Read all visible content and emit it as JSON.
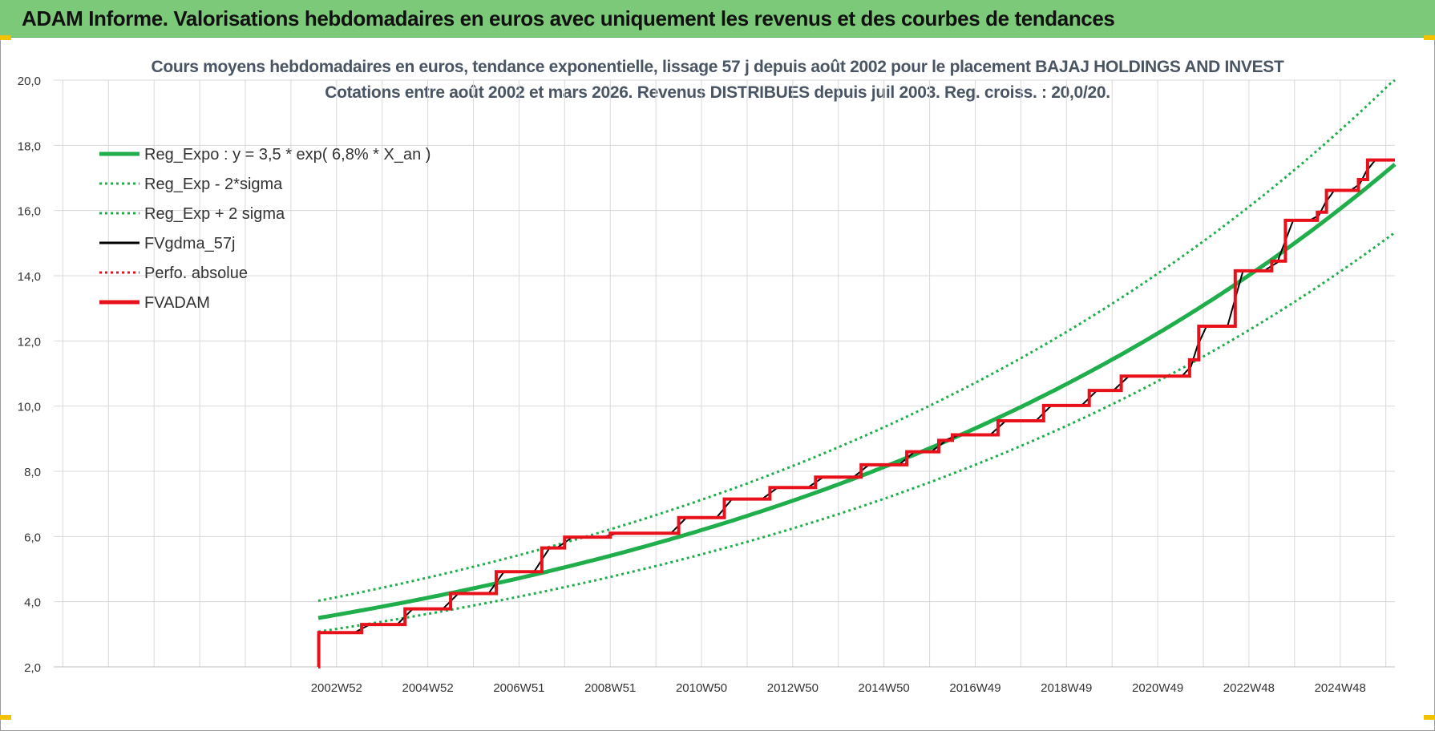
{
  "header": {
    "title": "ADAM Informe. Valorisations hebdomadaires en euros avec uniquement les revenus et des courbes de tendances"
  },
  "colors": {
    "banner": "#7dc97a",
    "reg_expo": "#1fae4b",
    "fvgdma": "#000000",
    "fvadam": "#e8101a",
    "perfo": "#e8101a",
    "grid": "#d9d9d9"
  },
  "chart_data": {
    "type": "line",
    "title": "Cours moyens hebdomadaires en euros, tendance exponentielle, lissage 57 j depuis août 2002 pour le placement BAJAJ HOLDINGS AND INVEST",
    "subtitle": "Cotations entre août 2002 et mars 2026. Revenus DISTRIBUES depuis juil 2003. Reg. croiss. : 20,0/20.",
    "ylim": [
      2.0,
      20.0
    ],
    "y_ticks": [
      "20,0",
      "18,0",
      "16,0",
      "14,0",
      "12,0",
      "10,0",
      "8,0",
      "6,0",
      "4,0",
      "2,0"
    ],
    "x_range": [
      1996.8,
      2026.2
    ],
    "x_ticks": [
      {
        "label": "2002W52",
        "year": 2003.0
      },
      {
        "label": "2004W52",
        "year": 2005.0
      },
      {
        "label": "2006W51",
        "year": 2007.0
      },
      {
        "label": "2008W51",
        "year": 2009.0
      },
      {
        "label": "2010W50",
        "year": 2011.0
      },
      {
        "label": "2012W50",
        "year": 2013.0
      },
      {
        "label": "2014W50",
        "year": 2015.0
      },
      {
        "label": "2016W49",
        "year": 2017.0
      },
      {
        "label": "2018W49",
        "year": 2019.0
      },
      {
        "label": "2020W49",
        "year": 2021.0
      },
      {
        "label": "2022W48",
        "year": 2023.0
      },
      {
        "label": "2024W48",
        "year": 2025.0
      }
    ],
    "grid": true,
    "legend_position": "top-left",
    "legend": [
      {
        "label": "Reg_Expo : y = 3,5 * exp( 6,8% *  X_an )",
        "style": "solid",
        "color": "#1fae4b"
      },
      {
        "label": "Reg_Exp - 2*sigma",
        "style": "dotted",
        "color": "#1fae4b"
      },
      {
        "label": "Reg_Exp + 2 sigma",
        "style": "dotted",
        "color": "#1fae4b"
      },
      {
        "label": "FVgdma_57j",
        "style": "solid",
        "color": "#000000"
      },
      {
        "label": "Perfo. absolue",
        "style": "dotted",
        "color": "#e8101a"
      },
      {
        "label": "FVADAM",
        "style": "solid",
        "color": "#e8101a"
      }
    ],
    "reg_expo": {
      "start_year": 2002.6,
      "end_year": 2026.2,
      "a": 3.5,
      "growth": 0.068,
      "lower_factor": 0.88,
      "upper_factor": 1.15
    },
    "fvadam_steps": [
      {
        "year": 2002.6,
        "value": 2.0
      },
      {
        "year": 2002.61,
        "value": 3.05
      },
      {
        "year": 2003.55,
        "value": 3.3
      },
      {
        "year": 2004.5,
        "value": 3.78
      },
      {
        "year": 2005.5,
        "value": 4.25
      },
      {
        "year": 2006.5,
        "value": 4.92
      },
      {
        "year": 2007.5,
        "value": 5.65
      },
      {
        "year": 2008.0,
        "value": 5.98
      },
      {
        "year": 2009.0,
        "value": 6.1
      },
      {
        "year": 2010.5,
        "value": 6.58
      },
      {
        "year": 2011.5,
        "value": 7.15
      },
      {
        "year": 2012.5,
        "value": 7.5
      },
      {
        "year": 2013.5,
        "value": 7.82
      },
      {
        "year": 2014.5,
        "value": 8.2
      },
      {
        "year": 2015.5,
        "value": 8.6
      },
      {
        "year": 2016.2,
        "value": 8.95
      },
      {
        "year": 2016.5,
        "value": 9.12
      },
      {
        "year": 2017.5,
        "value": 9.55
      },
      {
        "year": 2018.5,
        "value": 10.02
      },
      {
        "year": 2019.5,
        "value": 10.48
      },
      {
        "year": 2020.2,
        "value": 10.92
      },
      {
        "year": 2021.7,
        "value": 11.42
      },
      {
        "year": 2021.9,
        "value": 12.45
      },
      {
        "year": 2022.7,
        "value": 14.15
      },
      {
        "year": 2023.5,
        "value": 14.45
      },
      {
        "year": 2023.8,
        "value": 15.7
      },
      {
        "year": 2024.5,
        "value": 15.95
      },
      {
        "year": 2024.7,
        "value": 16.62
      },
      {
        "year": 2025.4,
        "value": 16.95
      },
      {
        "year": 2025.6,
        "value": 17.55
      },
      {
        "year": 2026.2,
        "value": 17.55
      }
    ]
  }
}
